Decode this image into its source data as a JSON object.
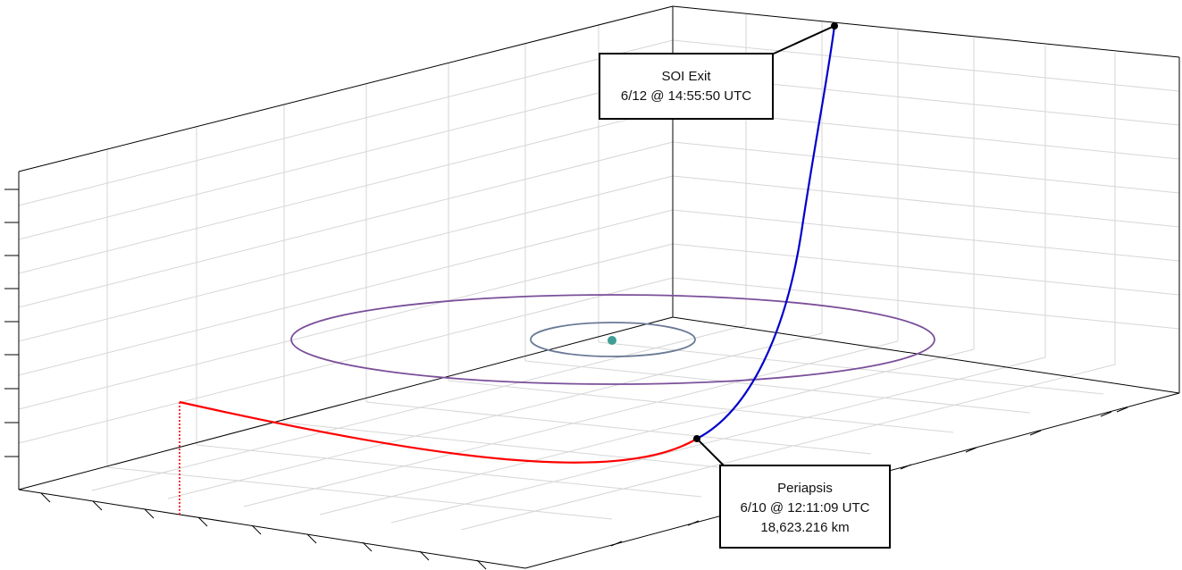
{
  "annotations": {
    "soi_exit": {
      "title": "SOI Exit",
      "time": "6/12 @ 14:55:50 UTC"
    },
    "periapsis": {
      "title": "Periapsis",
      "time": "6/10 @ 12:11:09 UTC",
      "distance": "18,623.216 km"
    }
  },
  "colors": {
    "arrival_trajectory": "#ff0000",
    "departure_trajectory": "#0000cc",
    "outer_orbit": "#7a4f9a",
    "inner_orbit": "#6a7a96",
    "central_body": "#3f9f94",
    "grid": "#d6d6d6",
    "axes": "#000000"
  }
}
